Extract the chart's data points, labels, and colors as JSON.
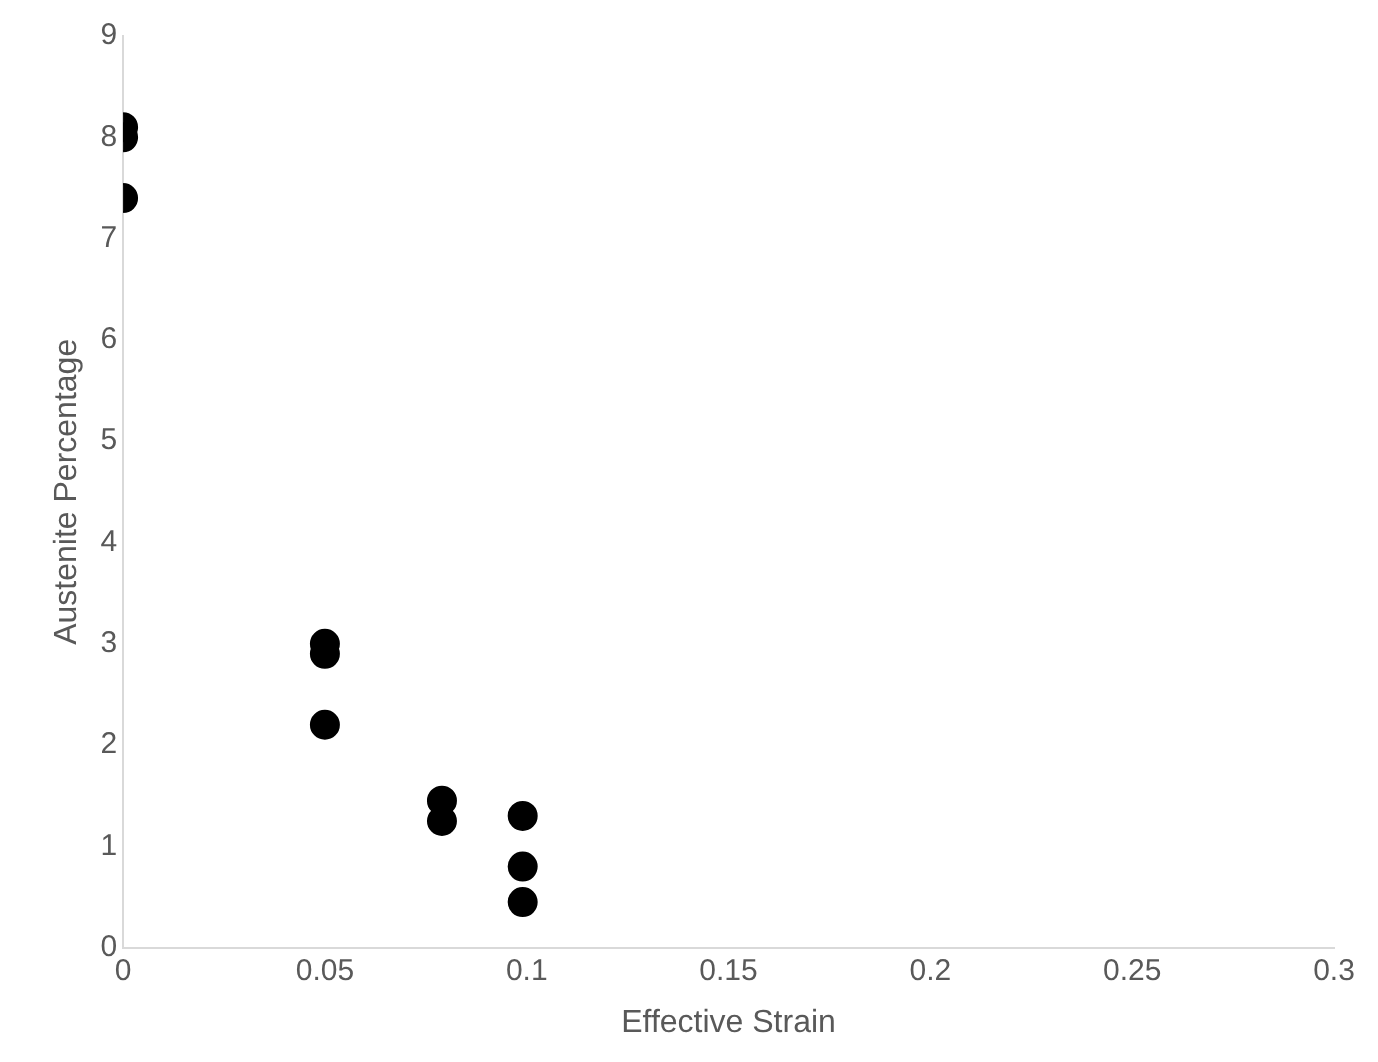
{
  "chart_data": {
    "type": "scatter",
    "xlabel": "Effective Strain",
    "ylabel": "Austenite Percentage",
    "x": [
      0,
      0,
      0,
      0.05,
      0.05,
      0.05,
      0.079,
      0.079,
      0.099,
      0.099,
      0.099
    ],
    "values": [
      8.1,
      8.0,
      7.4,
      3.0,
      2.9,
      2.2,
      1.45,
      1.25,
      1.3,
      0.8,
      0.45
    ],
    "color": "#000000",
    "marker": "circle",
    "xlim": [
      0,
      0.3
    ],
    "xticks": [
      0,
      0.05,
      0.1,
      0.15,
      0.2,
      0.25,
      0.3
    ],
    "ylim": [
      0,
      9
    ],
    "yticks": [
      0,
      1,
      2,
      3,
      4,
      5,
      6,
      7,
      8,
      9
    ],
    "grid": false,
    "legend": false
  }
}
